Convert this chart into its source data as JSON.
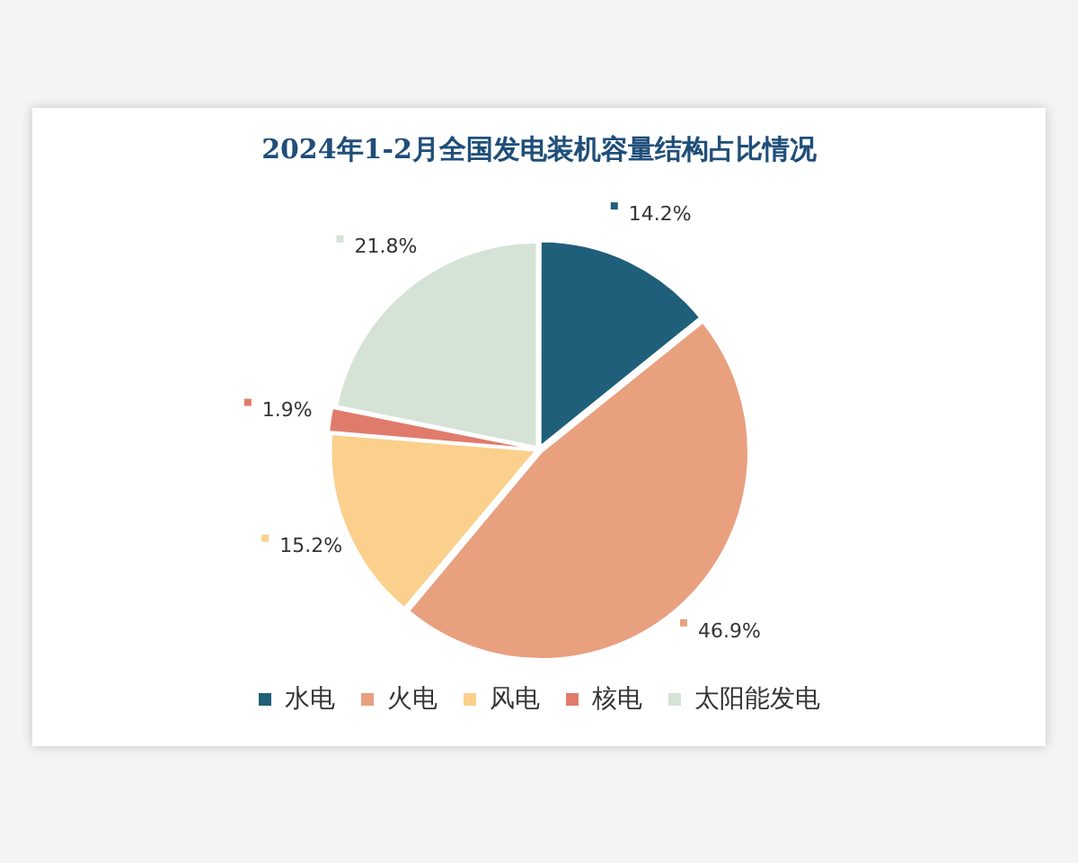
{
  "chart_data": {
    "type": "pie",
    "title": "2024年1-2月全国发电装机容量结构占比情况",
    "categories": [
      "水电",
      "火电",
      "风电",
      "核电",
      "太阳能发电"
    ],
    "values": [
      14.2,
      46.9,
      15.2,
      1.9,
      21.8
    ],
    "colors": [
      "#1f5f7a",
      "#e8a07f",
      "#fbd08c",
      "#e07b6b",
      "#d4e3d5"
    ],
    "value_labels": [
      "14.2%",
      "46.9%",
      "15.2%",
      "1.9%",
      "21.8%"
    ],
    "legend": "bottom"
  }
}
